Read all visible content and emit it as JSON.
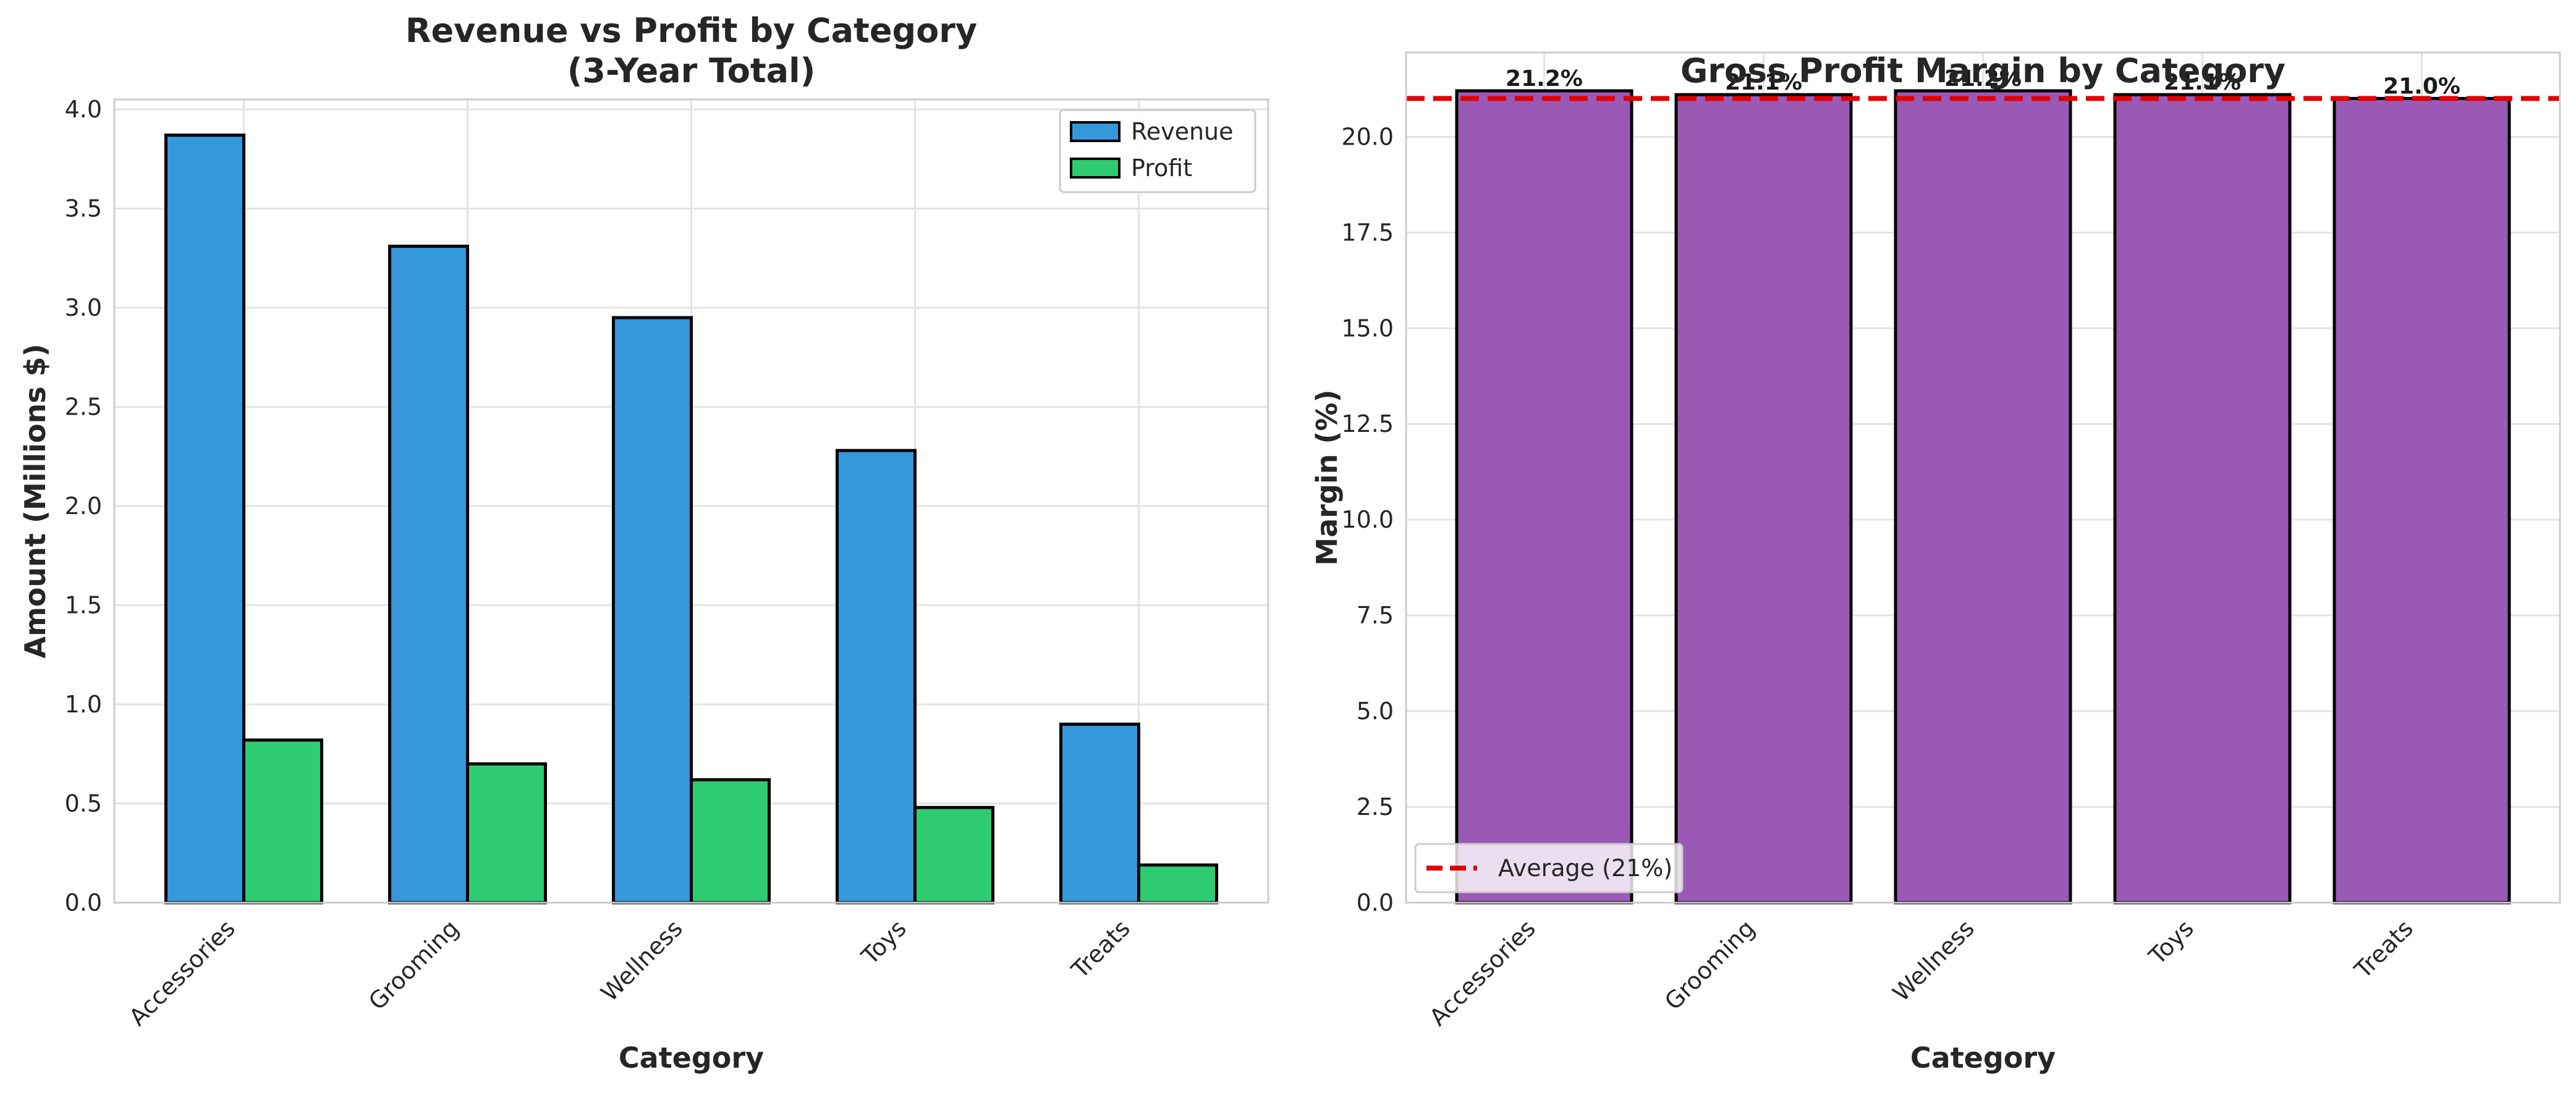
{
  "chart_data": [
    {
      "type": "bar",
      "title": [
        "Revenue vs Profit by Category",
        "(3-Year Total)"
      ],
      "xlabel": "Category",
      "ylabel": "Amount (Millions $)",
      "categories": [
        "Accessories",
        "Grooming",
        "Wellness",
        "Toys",
        "Treats"
      ],
      "series": [
        {
          "name": "Revenue",
          "color": "#3498db",
          "values": [
            3.87,
            3.31,
            2.95,
            2.28,
            0.9
          ]
        },
        {
          "name": "Profit",
          "color": "#2ecc71",
          "values": [
            0.82,
            0.7,
            0.62,
            0.48,
            0.19
          ]
        }
      ],
      "ylim": [
        0,
        4.05
      ],
      "yticks": [
        "0.0",
        "0.5",
        "1.0",
        "1.5",
        "2.0",
        "2.5",
        "3.0",
        "3.5",
        "4.0"
      ],
      "grid": true,
      "legend": "top-right"
    },
    {
      "type": "bar",
      "title": [
        "Gross Profit Margin by Category"
      ],
      "xlabel": "Category",
      "ylabel": "Margin (%)",
      "categories": [
        "Accessories",
        "Grooming",
        "Wellness",
        "Toys",
        "Treats"
      ],
      "series": [
        {
          "color": "#9b59b6",
          "values": [
            21.2,
            21.1,
            21.2,
            21.1,
            21.0
          ]
        }
      ],
      "value_labels": [
        "21.2%",
        "21.1%",
        "21.2%",
        "21.1%",
        "21.0%"
      ],
      "reference_line": {
        "value": 21.0,
        "label": "Average (21%)",
        "color": "#e00000",
        "style": "dashed"
      },
      "ylim": [
        0,
        22.2
      ],
      "yticks": [
        "0.0",
        "2.5",
        "5.0",
        "7.5",
        "10.0",
        "12.5",
        "15.0",
        "17.5",
        "20.0"
      ],
      "grid": true,
      "legend": "bottom-left"
    }
  ]
}
